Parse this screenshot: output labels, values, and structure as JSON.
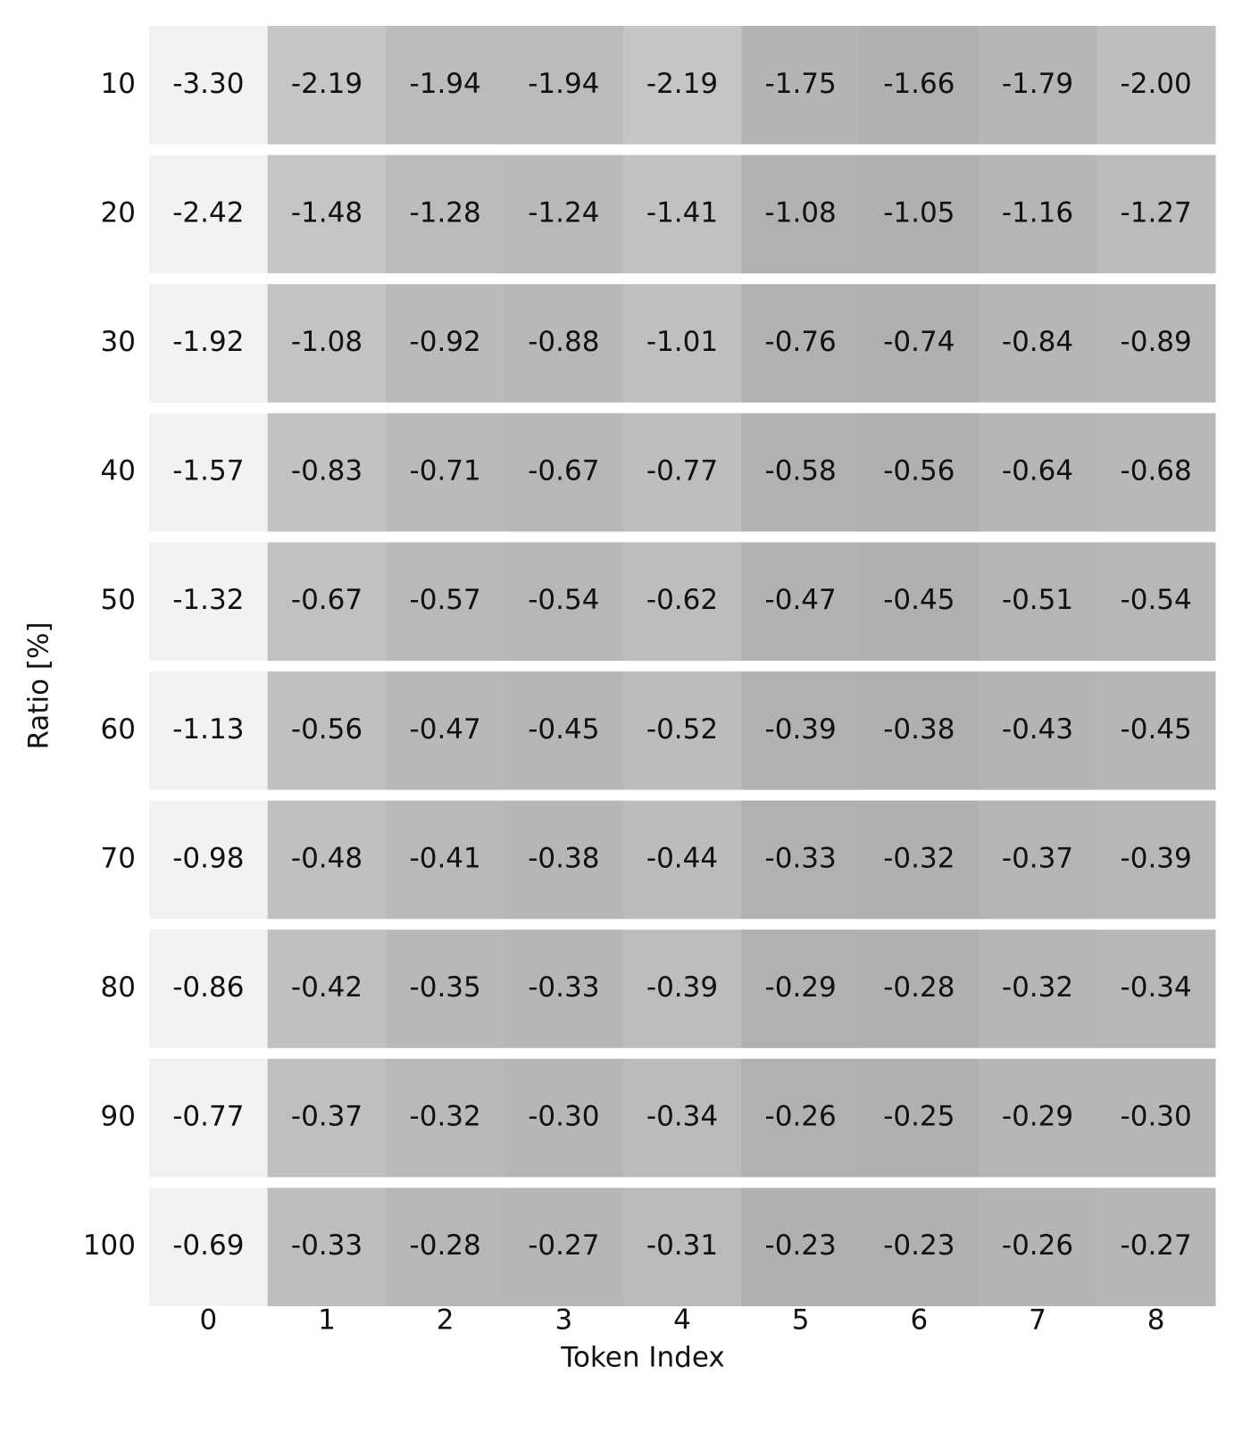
{
  "chart_data": {
    "type": "heatmap",
    "x_label": "Token Index",
    "y_label": "Ratio [%]",
    "x_categories": [
      "0",
      "1",
      "2",
      "3",
      "4",
      "5",
      "6",
      "7",
      "8"
    ],
    "y_categories": [
      "10",
      "20",
      "30",
      "40",
      "50",
      "60",
      "70",
      "80",
      "90",
      "100"
    ],
    "values": [
      [
        -3.3,
        -2.19,
        -1.94,
        -1.94,
        -2.19,
        -1.75,
        -1.66,
        -1.79,
        -2.0
      ],
      [
        -2.42,
        -1.48,
        -1.28,
        -1.24,
        -1.41,
        -1.08,
        -1.05,
        -1.16,
        -1.27
      ],
      [
        -1.92,
        -1.08,
        -0.92,
        -0.88,
        -1.01,
        -0.76,
        -0.74,
        -0.84,
        -0.89
      ],
      [
        -1.57,
        -0.83,
        -0.71,
        -0.67,
        -0.77,
        -0.58,
        -0.56,
        -0.64,
        -0.68
      ],
      [
        -1.32,
        -0.67,
        -0.57,
        -0.54,
        -0.62,
        -0.47,
        -0.45,
        -0.51,
        -0.54
      ],
      [
        -1.13,
        -0.56,
        -0.47,
        -0.45,
        -0.52,
        -0.39,
        -0.38,
        -0.43,
        -0.45
      ],
      [
        -0.98,
        -0.48,
        -0.41,
        -0.38,
        -0.44,
        -0.33,
        -0.32,
        -0.37,
        -0.39
      ],
      [
        -0.86,
        -0.42,
        -0.35,
        -0.33,
        -0.39,
        -0.29,
        -0.28,
        -0.32,
        -0.34
      ],
      [
        -0.77,
        -0.37,
        -0.32,
        -0.3,
        -0.34,
        -0.26,
        -0.25,
        -0.29,
        -0.3
      ],
      [
        -0.69,
        -0.33,
        -0.28,
        -0.27,
        -0.31,
        -0.23,
        -0.23,
        -0.26,
        -0.27
      ]
    ],
    "value_labels": [
      [
        "-3.30",
        "-2.19",
        "-1.94",
        "-1.94",
        "-2.19",
        "-1.75",
        "-1.66",
        "-1.79",
        "-2.00"
      ],
      [
        "-2.42",
        "-1.48",
        "-1.28",
        "-1.24",
        "-1.41",
        "-1.08",
        "-1.05",
        "-1.16",
        "-1.27"
      ],
      [
        "-1.92",
        "-1.08",
        "-0.92",
        "-0.88",
        "-1.01",
        "-0.76",
        "-0.74",
        "-0.84",
        "-0.89"
      ],
      [
        "-1.57",
        "-0.83",
        "-0.71",
        "-0.67",
        "-0.77",
        "-0.58",
        "-0.56",
        "-0.64",
        "-0.68"
      ],
      [
        "-1.32",
        "-0.67",
        "-0.57",
        "-0.54",
        "-0.62",
        "-0.47",
        "-0.45",
        "-0.51",
        "-0.54"
      ],
      [
        "-1.13",
        "-0.56",
        "-0.47",
        "-0.45",
        "-0.52",
        "-0.39",
        "-0.38",
        "-0.43",
        "-0.45"
      ],
      [
        "-0.98",
        "-0.48",
        "-0.41",
        "-0.38",
        "-0.44",
        "-0.33",
        "-0.32",
        "-0.37",
        "-0.39"
      ],
      [
        "-0.86",
        "-0.42",
        "-0.35",
        "-0.33",
        "-0.39",
        "-0.29",
        "-0.28",
        "-0.32",
        "-0.34"
      ],
      [
        "-0.77",
        "-0.37",
        "-0.32",
        "-0.30",
        "-0.34",
        "-0.26",
        "-0.25",
        "-0.29",
        "-0.30"
      ],
      [
        "-0.69",
        "-0.33",
        "-0.28",
        "-0.27",
        "-0.31",
        "-0.23",
        "-0.23",
        "-0.26",
        "-0.27"
      ]
    ],
    "color_low": "#f2f2f2",
    "color_high": "#b0b0b0",
    "color_normalize": "row"
  }
}
